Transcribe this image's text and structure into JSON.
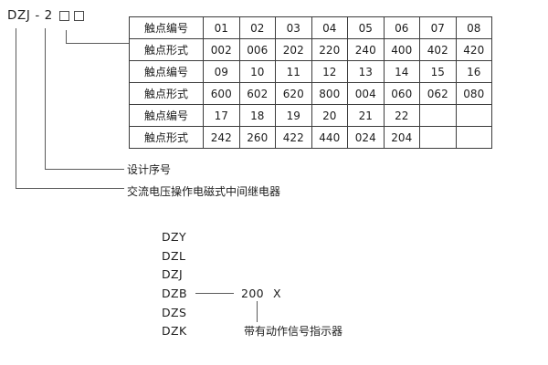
{
  "model_code": {
    "text": "DZJ - 2"
  },
  "table": {
    "rows": [
      {
        "header": "触点编号",
        "cells": [
          "01",
          "02",
          "03",
          "04",
          "05",
          "06",
          "07",
          "08"
        ]
      },
      {
        "header": "触点形式",
        "cells": [
          "002",
          "006",
          "202",
          "220",
          "240",
          "400",
          "402",
          "420"
        ]
      },
      {
        "header": "触点编号",
        "cells": [
          "09",
          "10",
          "11",
          "12",
          "13",
          "14",
          "15",
          "16"
        ]
      },
      {
        "header": "触点形式",
        "cells": [
          "600",
          "602",
          "620",
          "800",
          "004",
          "060",
          "062",
          "080"
        ]
      },
      {
        "header": "触点编号",
        "cells": [
          "17",
          "18",
          "19",
          "20",
          "21",
          "22",
          "",
          ""
        ]
      },
      {
        "header": "触点形式",
        "cells": [
          "242",
          "260",
          "422",
          "440",
          "024",
          "204",
          "",
          ""
        ]
      }
    ]
  },
  "callouts": {
    "design_serial_label": "设计序号",
    "relay_type_label": "交流电压操作电磁式中间继电器"
  },
  "model_list": {
    "items": [
      "DZY",
      "DZL",
      "DZJ",
      "DZB",
      "DZS",
      "DZK"
    ],
    "link_from": "DZB",
    "link_value": "200",
    "link_suffix": "X",
    "indicator_note": "带有动作信号指示器"
  },
  "colors": {
    "background": "#ffffff",
    "text": "#1c1c1c",
    "table_border": "#3c3c3c",
    "connector_line": "#5a5a5a"
  }
}
